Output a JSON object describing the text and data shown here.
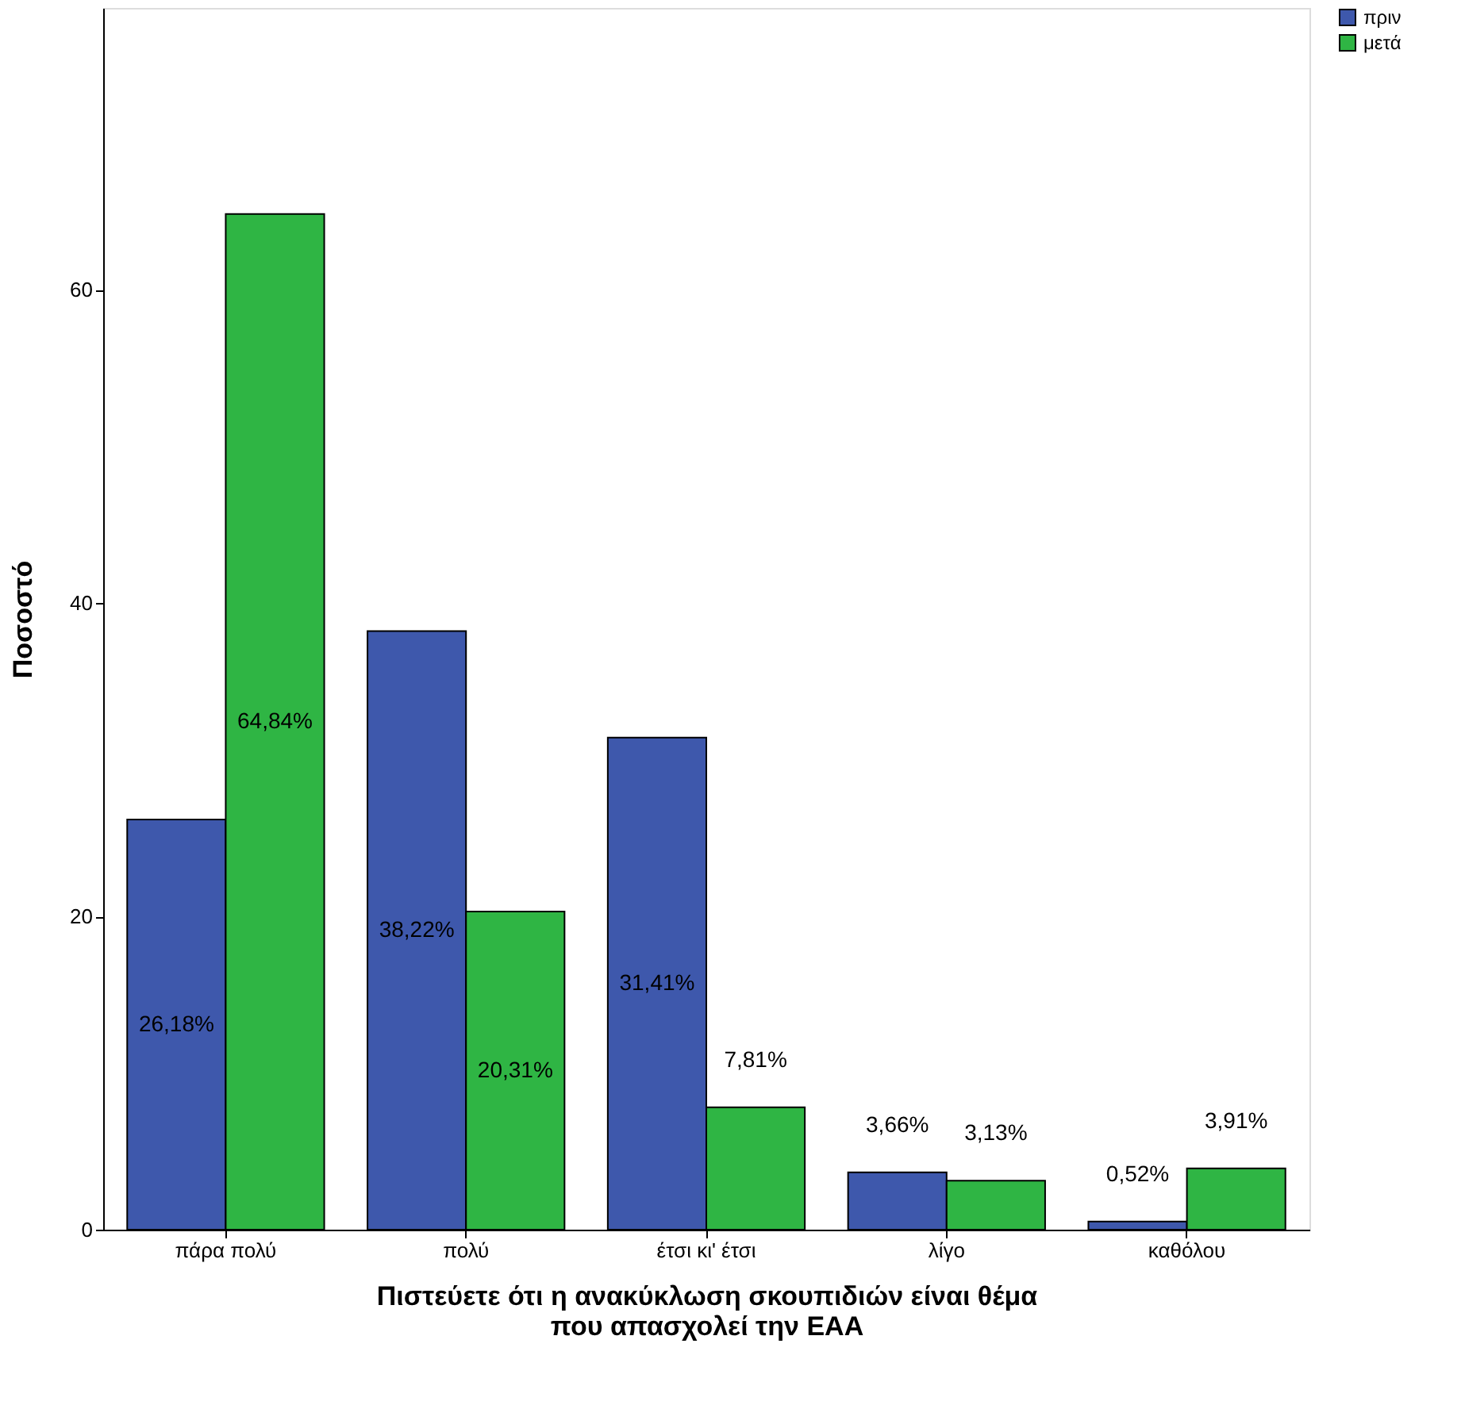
{
  "chart_data": {
    "type": "bar",
    "xlabel": "Πιστεύετε ότι η ανακύκλωση σκουπιδιών είναι θέμα\nπου απασχολεί την ΕΑΑ",
    "ylabel": "Ποσοστό",
    "categories": [
      "πάρα πολύ",
      "πολύ",
      "έτσι κι' έτσι",
      "λίγο",
      "καθόλου"
    ],
    "series": [
      {
        "name": "πριν",
        "color": "#3e58ac",
        "values": [
          26.18,
          38.22,
          31.41,
          3.66,
          0.52
        ],
        "value_labels": [
          "26,18%",
          "38,22%",
          "31,41%",
          "3,66%",
          "0,52%"
        ]
      },
      {
        "name": "μετά",
        "color": "#2fb544",
        "values": [
          64.84,
          20.31,
          7.81,
          3.13,
          3.91
        ],
        "value_labels": [
          "64,84%",
          "20,31%",
          "7,81%",
          "3,13%",
          "3,91%"
        ]
      }
    ],
    "ylim": [
      0,
      78
    ],
    "yticks": [
      0,
      20,
      40,
      60
    ],
    "grid": false,
    "legend": "top right"
  }
}
